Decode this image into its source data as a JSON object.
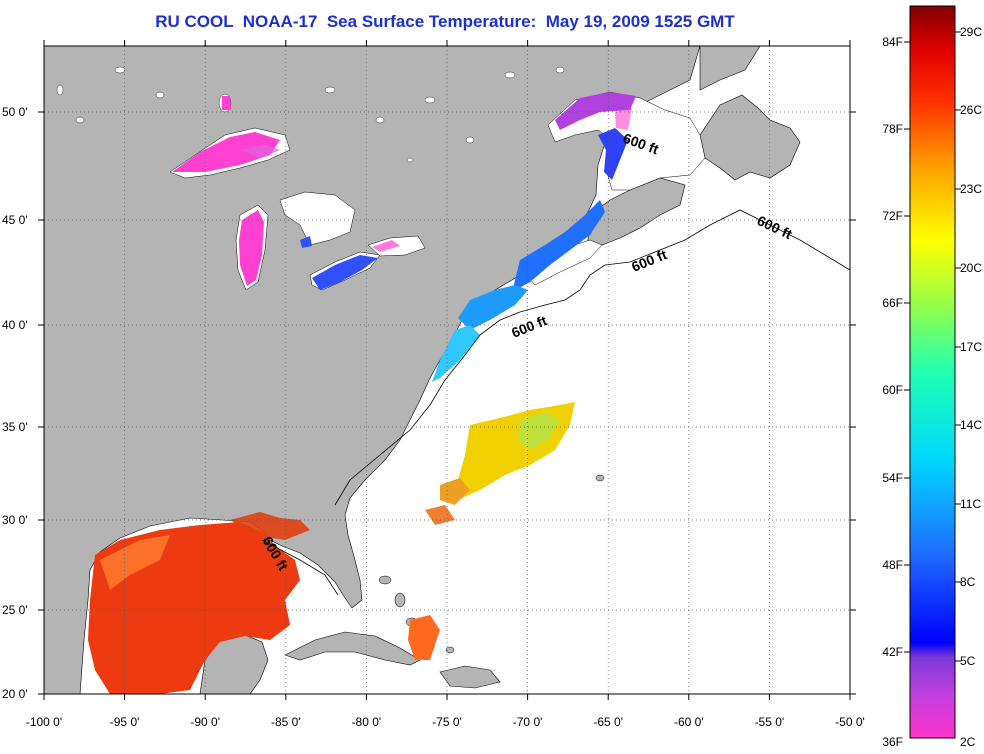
{
  "title": "RU COOL  NOAA-17  Sea Surface Temperature:  May 19, 2009 1525 GMT",
  "colors": {
    "land": "#b4b4b4",
    "ocean": "#ffffff",
    "title": "#1c2fd0"
  },
  "lat_labels": [
    "50 0'",
    "45 0'",
    "40 0'",
    "35 0'",
    "30 0'",
    "25 0'",
    "20 0'"
  ],
  "lon_labels": [
    "-100 0'",
    "-95 0'",
    "-90 0'",
    "-85 0'",
    "-80 0'",
    "-75 0'",
    "-70 0'",
    "-65 0'",
    "-60 0'",
    "-55 0'",
    "-50 0'"
  ],
  "contour_label": "600 ft",
  "colorbar": {
    "fahrenheit": [
      "84F",
      "78F",
      "72F",
      "66F",
      "60F",
      "54F",
      "48F",
      "42F",
      "36F"
    ],
    "celsius": [
      "29C",
      "26C",
      "23C",
      "20C",
      "17C",
      "14C",
      "11C",
      "8C",
      "5C",
      "2C"
    ]
  }
}
